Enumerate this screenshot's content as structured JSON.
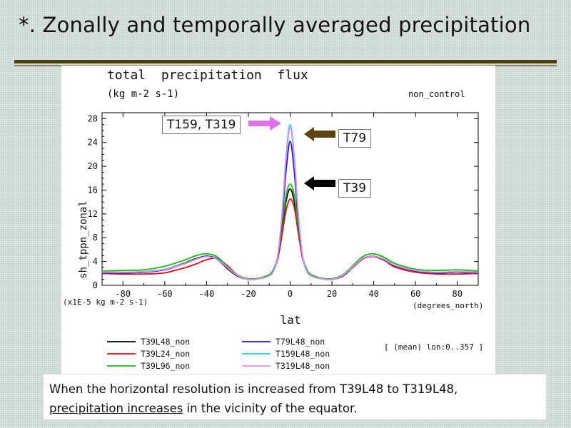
{
  "slide": {
    "title": "*. Zonally and temporally averaged precipitation",
    "caption_before": "When the horizontal resolution is increased from T39L48 to T319L48,",
    "caption_underlined": "precipitation increases",
    "caption_after": " in the vicinity of the equator."
  },
  "callouts": {
    "t159_t319": "T159, T319",
    "t79": "T79",
    "t39": "T39"
  },
  "colors": {
    "arrow_pink": "#e070e8",
    "arrow_brown": "#5a4310",
    "arrow_black": "#000000"
  },
  "chart_data": {
    "type": "line",
    "title": "total  precipitation  flux",
    "units": "(kg m-2 s-1)",
    "top_right_label": "non_control",
    "ylabel": "sh_tppn_zonal",
    "y_scale_note": "(x1E-5 kg m-2 s-1)",
    "xlabel": "lat",
    "x_unit_note": "(degrees_north)",
    "footer_note": "[ (mean) lon:0..357 ]",
    "xlim": [
      -90,
      90
    ],
    "ylim": [
      0,
      29
    ],
    "x_ticks": [
      -80,
      -60,
      -40,
      -20,
      0,
      20,
      40,
      60,
      80
    ],
    "y_ticks": [
      0,
      4,
      8,
      12,
      16,
      20,
      24,
      28
    ],
    "grid": false,
    "legend_position": "bottom",
    "series": [
      {
        "name": "T39L48_non",
        "color": "#000000",
        "x": [
          -90,
          -80,
          -70,
          -60,
          -50,
          -45,
          -40,
          -35,
          -30,
          -25,
          -20,
          -15,
          -10,
          -8,
          -6,
          -4,
          -2,
          0,
          2,
          4,
          6,
          8,
          10,
          15,
          20,
          25,
          30,
          35,
          40,
          45,
          50,
          60,
          70,
          80,
          90
        ],
        "y": [
          2.0,
          2.1,
          2.2,
          2.7,
          3.8,
          4.5,
          4.9,
          4.4,
          2.8,
          1.5,
          1.0,
          1.1,
          1.7,
          2.5,
          4.5,
          9.0,
          14.0,
          16.2,
          14.0,
          9.0,
          4.5,
          2.5,
          1.7,
          1.1,
          1.0,
          1.5,
          3.0,
          4.5,
          4.9,
          4.3,
          3.3,
          2.4,
          2.1,
          2.2,
          2.0
        ]
      },
      {
        "name": "T39L24_non",
        "color": "#e01010",
        "x": [
          -90,
          -80,
          -70,
          -60,
          -50,
          -45,
          -40,
          -35,
          -30,
          -25,
          -20,
          -15,
          -10,
          -8,
          -6,
          -4,
          -2,
          0,
          2,
          4,
          6,
          8,
          10,
          15,
          20,
          25,
          30,
          35,
          40,
          45,
          50,
          60,
          70,
          80,
          90
        ],
        "y": [
          2.0,
          1.9,
          1.9,
          2.1,
          3.0,
          3.6,
          4.3,
          4.5,
          3.3,
          1.7,
          1.1,
          1.2,
          1.8,
          2.6,
          4.3,
          8.2,
          12.5,
          14.5,
          13.0,
          8.5,
          4.4,
          2.6,
          1.8,
          1.2,
          1.1,
          1.7,
          3.0,
          4.5,
          4.8,
          4.2,
          3.1,
          2.2,
          1.9,
          1.9,
          2.0
        ]
      },
      {
        "name": "T39L96_non",
        "color": "#10c010",
        "x": [
          -90,
          -80,
          -70,
          -60,
          -50,
          -45,
          -40,
          -35,
          -30,
          -25,
          -20,
          -15,
          -10,
          -8,
          -6,
          -4,
          -2,
          0,
          2,
          4,
          6,
          8,
          10,
          15,
          20,
          25,
          30,
          35,
          40,
          45,
          50,
          60,
          70,
          80,
          90
        ],
        "y": [
          2.4,
          2.5,
          2.6,
          3.2,
          4.3,
          5.0,
          5.3,
          4.8,
          3.1,
          1.7,
          1.1,
          1.2,
          1.8,
          2.7,
          4.8,
          9.5,
          15.0,
          17.0,
          15.0,
          9.5,
          4.8,
          2.7,
          1.8,
          1.2,
          1.1,
          1.7,
          3.3,
          4.9,
          5.3,
          4.7,
          3.7,
          2.7,
          2.5,
          2.6,
          2.4
        ]
      },
      {
        "name": "T79L48_non",
        "color": "#1a1ad0",
        "x": [
          -90,
          -80,
          -70,
          -60,
          -50,
          -45,
          -40,
          -35,
          -30,
          -25,
          -20,
          -15,
          -10,
          -8,
          -6,
          -4,
          -2,
          0,
          2,
          4,
          6,
          8,
          10,
          15,
          20,
          25,
          30,
          35,
          40,
          45,
          50,
          60,
          70,
          80,
          90
        ],
        "y": [
          2.1,
          2.1,
          2.2,
          2.6,
          3.7,
          4.4,
          4.9,
          4.5,
          3.0,
          1.6,
          1.0,
          1.1,
          1.6,
          2.4,
          4.6,
          10.5,
          19.0,
          24.2,
          19.0,
          10.5,
          4.6,
          2.4,
          1.6,
          1.1,
          1.0,
          1.6,
          3.1,
          4.6,
          4.9,
          4.3,
          3.3,
          2.4,
          2.1,
          2.2,
          2.1
        ]
      },
      {
        "name": "T159L48_non",
        "color": "#20d0e8",
        "x": [
          -90,
          -80,
          -70,
          -60,
          -50,
          -45,
          -40,
          -35,
          -30,
          -25,
          -20,
          -15,
          -10,
          -8,
          -6,
          -4,
          -2,
          0,
          2,
          4,
          6,
          8,
          10,
          15,
          20,
          25,
          30,
          35,
          40,
          45,
          50,
          60,
          70,
          80,
          90
        ],
        "y": [
          2.2,
          2.2,
          2.3,
          2.7,
          3.7,
          4.4,
          4.8,
          4.4,
          3.0,
          1.6,
          1.0,
          1.1,
          1.6,
          2.4,
          4.8,
          11.5,
          21.5,
          27.0,
          21.5,
          11.5,
          4.8,
          2.4,
          1.6,
          1.1,
          1.0,
          1.6,
          3.1,
          4.6,
          4.9,
          4.4,
          3.4,
          2.5,
          2.2,
          2.3,
          2.2
        ]
      },
      {
        "name": "T319L48_non",
        "color": "#e090e8",
        "x": [
          -90,
          -80,
          -70,
          -60,
          -50,
          -45,
          -40,
          -35,
          -30,
          -25,
          -20,
          -15,
          -10,
          -8,
          -6,
          -4,
          -2,
          0,
          2,
          4,
          6,
          8,
          10,
          15,
          20,
          25,
          30,
          35,
          40,
          45,
          50,
          60,
          70,
          80,
          90
        ],
        "y": [
          2.2,
          2.2,
          2.3,
          2.7,
          3.7,
          4.4,
          4.8,
          4.4,
          3.0,
          1.6,
          1.0,
          1.1,
          1.6,
          2.4,
          4.8,
          11.5,
          21.0,
          26.5,
          21.0,
          11.5,
          4.8,
          2.4,
          1.6,
          1.1,
          1.0,
          1.6,
          3.1,
          4.6,
          4.9,
          4.4,
          3.4,
          2.5,
          2.2,
          2.3,
          2.2
        ]
      }
    ]
  }
}
